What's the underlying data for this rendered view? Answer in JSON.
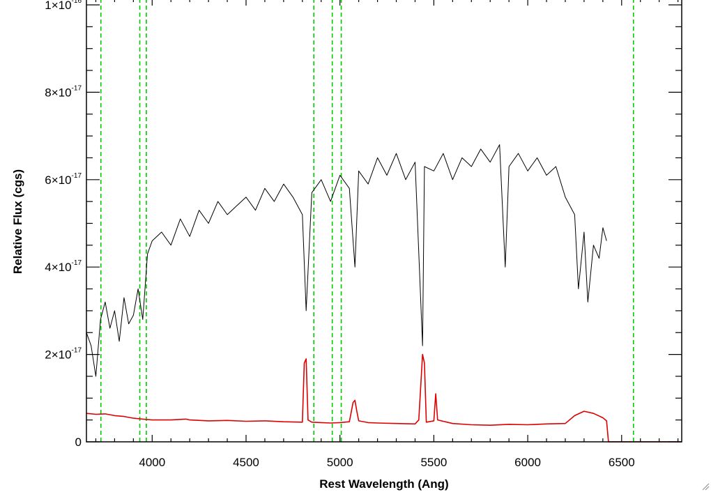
{
  "chart_data": {
    "type": "line",
    "title": "",
    "xlabel": "Rest Wavelength (Ang)",
    "ylabel": "Relative Flux (cgs)",
    "xlim": [
      3650,
      6820
    ],
    "ylim": [
      0,
      1e-16
    ],
    "x_ticks": [
      {
        "value": 4000,
        "label": "4000"
      },
      {
        "value": 4500,
        "label": "4500"
      },
      {
        "value": 5000,
        "label": "5000"
      },
      {
        "value": 5500,
        "label": "5500"
      },
      {
        "value": 6000,
        "label": "6000"
      },
      {
        "value": 6500,
        "label": "6500"
      }
    ],
    "y_ticks": [
      {
        "value": 0,
        "mantissa": "0",
        "exponent": ""
      },
      {
        "value": 2e-17,
        "mantissa": "2×10",
        "exponent": "-17"
      },
      {
        "value": 4e-17,
        "mantissa": "4×10",
        "exponent": "-17"
      },
      {
        "value": 6e-17,
        "mantissa": "6×10",
        "exponent": "-17"
      },
      {
        "value": 8e-17,
        "mantissa": "8×10",
        "exponent": "-17"
      },
      {
        "value": 1e-16,
        "mantissa": "1×10",
        "exponent": "-16"
      }
    ],
    "vertical_lines": {
      "color": "#00cc00",
      "style": "dashed",
      "x": [
        3727,
        3934,
        3969,
        4861,
        4959,
        5007,
        6563
      ]
    },
    "grid": false,
    "legend": "none",
    "series": [
      {
        "color": "#000000",
        "x": [
          3650,
          3675,
          3700,
          3725,
          3750,
          3775,
          3800,
          3825,
          3850,
          3875,
          3900,
          3925,
          3950,
          3975,
          4000,
          4050,
          4100,
          4150,
          4200,
          4250,
          4300,
          4350,
          4400,
          4450,
          4500,
          4550,
          4600,
          4650,
          4700,
          4750,
          4800,
          4820,
          4850,
          4900,
          4950,
          5000,
          5050,
          5080,
          5100,
          5150,
          5200,
          5250,
          5300,
          5350,
          5400,
          5440,
          5450,
          5500,
          5550,
          5600,
          5650,
          5700,
          5750,
          5800,
          5850,
          5880,
          5900,
          5950,
          6000,
          6050,
          6100,
          6150,
          6200,
          6250,
          6270,
          6300,
          6320,
          6350,
          6380,
          6400,
          6420
        ],
        "values": [
          2.5e-17,
          2.2e-17,
          1.5e-17,
          2.8e-17,
          3.2e-17,
          2.6e-17,
          3e-17,
          2.3e-17,
          3.3e-17,
          2.7e-17,
          2.9e-17,
          3.5e-17,
          2.8e-17,
          4.3e-17,
          4.6e-17,
          4.8e-17,
          4.5e-17,
          5.1e-17,
          4.7e-17,
          5.3e-17,
          5e-17,
          5.5e-17,
          5.2e-17,
          5.4e-17,
          5.6e-17,
          5.3e-17,
          5.8e-17,
          5.5e-17,
          5.9e-17,
          5.6e-17,
          5.2e-17,
          3e-17,
          5.7e-17,
          6e-17,
          5.5e-17,
          6.1e-17,
          5.8e-17,
          4e-17,
          6.2e-17,
          5.9e-17,
          6.5e-17,
          6.1e-17,
          6.6e-17,
          6e-17,
          6.4e-17,
          2.2e-17,
          6.3e-17,
          6.2e-17,
          6.6e-17,
          6e-17,
          6.5e-17,
          6.3e-17,
          6.7e-17,
          6.4e-17,
          6.8e-17,
          4e-17,
          6.3e-17,
          6.6e-17,
          6.2e-17,
          6.5e-17,
          6.1e-17,
          6.3e-17,
          5.6e-17,
          5.2e-17,
          3.5e-17,
          4.8e-17,
          3.2e-17,
          4.5e-17,
          4.2e-17,
          4.9e-17,
          4.6e-17
        ]
      },
      {
        "color": "#dd0000",
        "x": [
          3650,
          3700,
          3750,
          3800,
          3850,
          3900,
          3950,
          4000,
          4100,
          4180,
          4200,
          4300,
          4400,
          4500,
          4600,
          4700,
          4800,
          4810,
          4820,
          4830,
          4850,
          4900,
          4950,
          5000,
          5050,
          5070,
          5080,
          5090,
          5100,
          5150,
          5200,
          5300,
          5400,
          5420,
          5440,
          5450,
          5460,
          5500,
          5510,
          5520,
          5600,
          5700,
          5800,
          5900,
          6000,
          6100,
          6200,
          6250,
          6300,
          6350,
          6400,
          6420,
          6430,
          6820
        ],
        "values": [
          6.5e-18,
          6.3e-18,
          6.4e-18,
          6e-18,
          5.8e-18,
          5.4e-18,
          5.2e-18,
          5e-18,
          5e-18,
          5.2e-18,
          5e-18,
          4.8e-18,
          4.9e-18,
          4.7e-18,
          4.8e-18,
          4.6e-18,
          4.5e-18,
          1.8e-17,
          1.9e-17,
          5e-18,
          4.5e-18,
          4.4e-18,
          4.3e-18,
          4.4e-18,
          4.6e-18,
          9e-18,
          9.5e-18,
          7e-18,
          4.8e-18,
          4.4e-18,
          4.3e-18,
          4.2e-18,
          4.1e-18,
          5e-18,
          2e-17,
          1.8e-17,
          4.5e-18,
          4.8e-18,
          1.1e-17,
          5e-18,
          4.2e-18,
          3.9e-18,
          3.8e-18,
          4e-18,
          3.9e-18,
          4.1e-18,
          4.2e-18,
          6e-18,
          7e-18,
          6.5e-18,
          5.5e-18,
          4.8e-18,
          0,
          0
        ]
      }
    ]
  }
}
